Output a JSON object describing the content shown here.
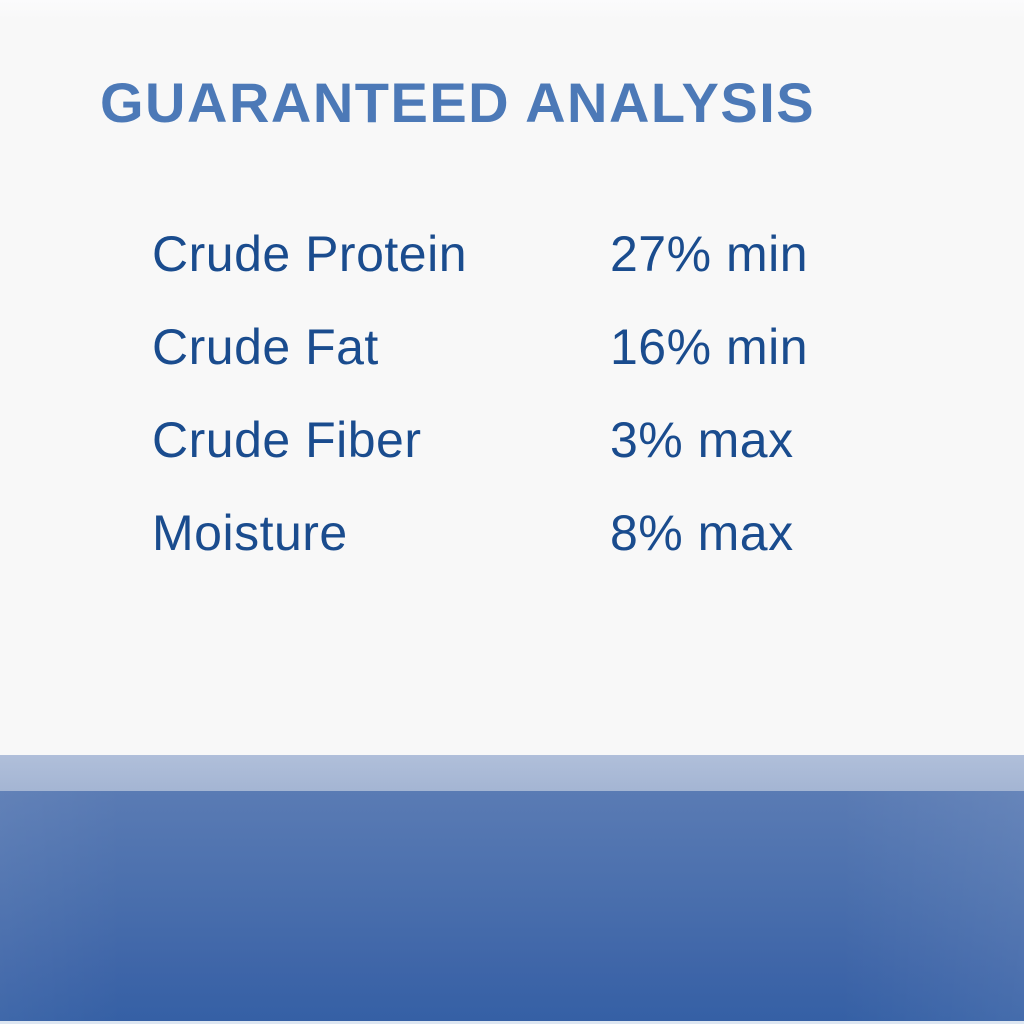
{
  "label": {
    "title": "GUARANTEED ANALYSIS",
    "rows": [
      {
        "name": "Crude Protein",
        "value": "27% min"
      },
      {
        "name": "Crude Fat",
        "value": "16% min"
      },
      {
        "name": "Crude Fiber",
        "value": "3% max"
      },
      {
        "name": "Moisture",
        "value": "8% max"
      }
    ]
  },
  "colors": {
    "title_blue": "#4C79B7",
    "text_navy": "#1A4C8E",
    "background": "#F8F8F8",
    "band_light_top": "#B0BFDA",
    "band_light_bottom": "#A4B5D3",
    "band_top": "#5A7BB4",
    "band_mid": "#4A6FAD",
    "band_bottom": "#3560A5",
    "band_edge": "#DDE6F1"
  }
}
